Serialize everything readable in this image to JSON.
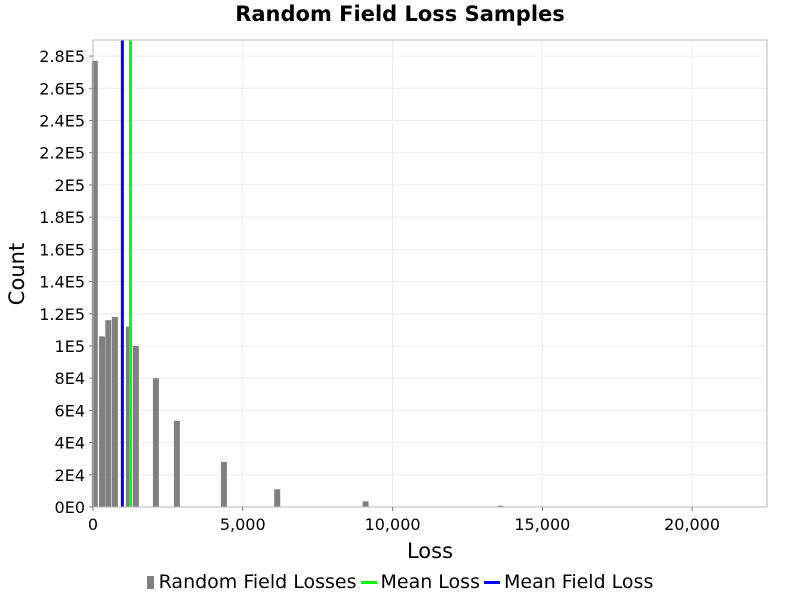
{
  "chart_data": {
    "type": "bar",
    "title": "Random Field Loss Samples",
    "xlabel": "Loss",
    "ylabel": "Count",
    "xlim": [
      0,
      22500
    ],
    "ylim": [
      0,
      290000
    ],
    "grid": true,
    "legend_position": "bottom",
    "x_ticks": [
      0,
      5000,
      10000,
      15000,
      20000
    ],
    "x_tick_labels": [
      "0",
      "5,000",
      "10,000",
      "15,000",
      "20,000"
    ],
    "y_ticks": [
      0,
      20000,
      40000,
      60000,
      80000,
      100000,
      120000,
      140000,
      160000,
      180000,
      200000,
      220000,
      240000,
      260000,
      280000
    ],
    "y_tick_labels": [
      "0E0",
      "2E4",
      "4E4",
      "6E4",
      "8E4",
      "1E5",
      "1.2E5",
      "1.4E5",
      "1.6E5",
      "1.8E5",
      "2E5",
      "2.2E5",
      "2.4E5",
      "2.6E5",
      "2.8E5"
    ],
    "bar_width": 200,
    "series": [
      {
        "name": "Random Field Losses",
        "kind": "bar",
        "color": "#808080",
        "x": [
          60,
          300,
          510,
          730,
          1200,
          1430,
          2100,
          2800,
          4370,
          6150,
          9100,
          13600
        ],
        "values": [
          277000,
          106000,
          116000,
          118000,
          112000,
          100000,
          80000,
          53500,
          28000,
          11000,
          3500,
          800
        ]
      },
      {
        "name": "Mean Loss",
        "kind": "vline",
        "color": "#00ff00",
        "x": 1250
      },
      {
        "name": "Mean Field Loss",
        "kind": "vline",
        "color": "#0000ff",
        "x": 980
      }
    ]
  }
}
